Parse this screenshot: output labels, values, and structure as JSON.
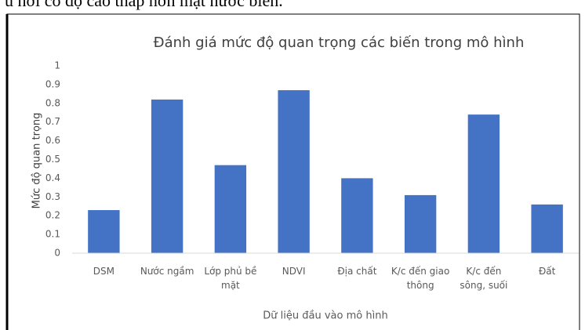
{
  "header_text": "u hơi có độ cao thấp hơn mặt nước biển.",
  "chart_data": {
    "type": "bar",
    "title": "Đánh giá mức độ quan trọng các biến trong mô hình",
    "x_label": "Dữ liệu đầu vào mô hình",
    "y_label": "Mức độ quan trọng",
    "categories": [
      "DSM",
      "Nước ngầm",
      "Lớp phủ bề mặt",
      "NDVI",
      "Địa chất",
      "K/c đến giao thông",
      "K/c đến sông, suối",
      "Đất"
    ],
    "values": [
      0.23,
      0.82,
      0.47,
      0.87,
      0.4,
      0.31,
      0.74,
      0.26
    ],
    "color": "#4472c4",
    "ylim": [
      0,
      1
    ],
    "yticks": [
      0,
      0.1,
      0.2,
      0.3,
      0.4,
      0.5,
      0.6,
      0.7,
      0.8,
      0.9,
      1
    ],
    "grid": false
  }
}
